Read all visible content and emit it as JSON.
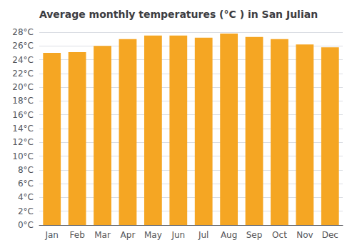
{
  "chart_data": {
    "type": "bar",
    "title": "Average monthly temperatures (°C ) in San Julian",
    "categories": [
      "Jan",
      "Feb",
      "Mar",
      "Apr",
      "May",
      "Jun",
      "Jul",
      "Aug",
      "Sep",
      "Oct",
      "Nov",
      "Dec"
    ],
    "values": [
      25.0,
      25.1,
      26.0,
      27.0,
      27.5,
      27.5,
      27.2,
      27.8,
      27.3,
      27.0,
      26.2,
      25.8
    ],
    "color": "#F5A623",
    "ylim": [
      0,
      28
    ],
    "yticks": [
      {
        "value": 0,
        "label": "0°C"
      },
      {
        "value": 2,
        "label": "2°C"
      },
      {
        "value": 4,
        "label": "4°C"
      },
      {
        "value": 6,
        "label": "6°C"
      },
      {
        "value": 8,
        "label": "8°C"
      },
      {
        "value": 10,
        "label": "10°C"
      },
      {
        "value": 12,
        "label": "12°C"
      },
      {
        "value": 14,
        "label": "14°C"
      },
      {
        "value": 16,
        "label": "16°C"
      },
      {
        "value": 18,
        "label": "18°C"
      },
      {
        "value": 20,
        "label": "20°C"
      },
      {
        "value": 22,
        "label": "22°C"
      },
      {
        "value": 24,
        "label": "24°C"
      },
      {
        "value": 26,
        "label": "26°C"
      },
      {
        "value": 28,
        "label": "28°C"
      }
    ],
    "grid": true
  }
}
